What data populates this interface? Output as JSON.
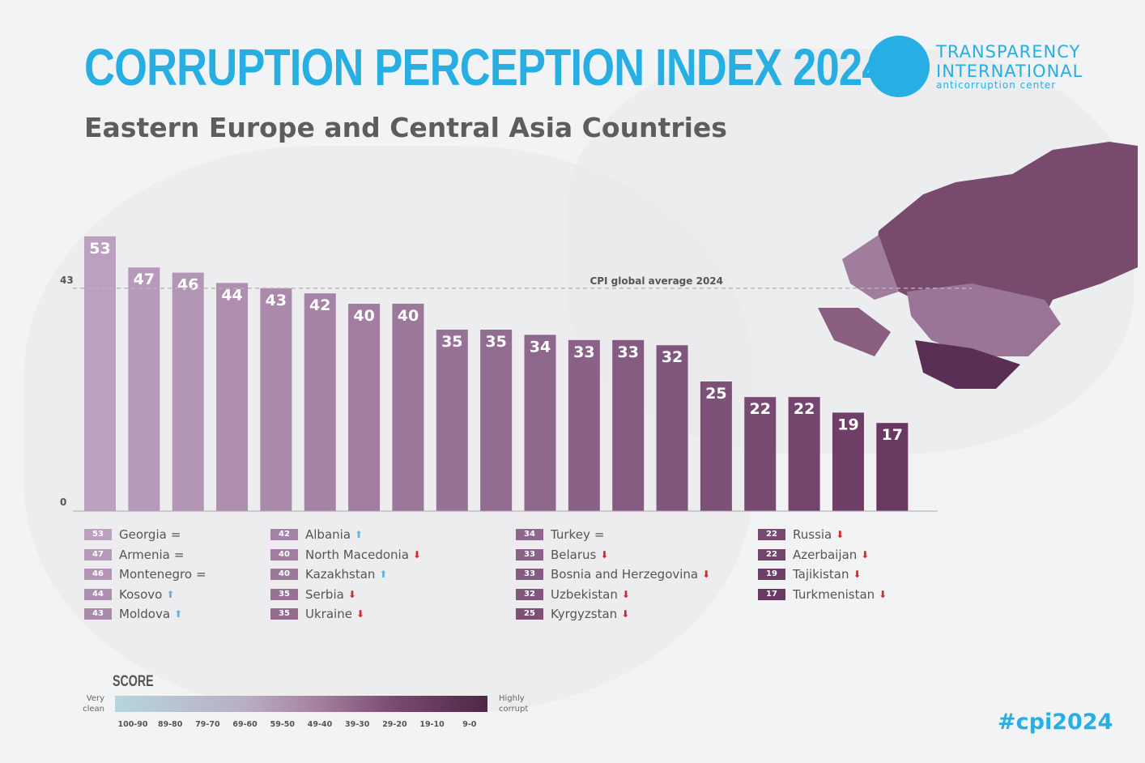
{
  "header": {
    "title": "CORRUPTION PERCEPTION INDEX 2024",
    "subtitle": "Eastern Europe and Central Asia Countries"
  },
  "logo": {
    "line1": "TRANSPARENCY",
    "line2": "INTERNATIONAL",
    "line3": "anticorruption center"
  },
  "chart_data": {
    "type": "bar",
    "categories": [
      "Georgia",
      "Armenia",
      "Montenegro",
      "Kosovo",
      "Moldova",
      "Albania",
      "North Macedonia",
      "Kazakhstan",
      "Serbia",
      "Ukraine",
      "Turkey",
      "Belarus",
      "Bosnia and Herzegovina",
      "Uzbekistan",
      "Kyrgyzstan",
      "Russia",
      "Azerbaijan",
      "Tajikistan",
      "Turkmenistan"
    ],
    "values": [
      53,
      47,
      46,
      44,
      43,
      42,
      40,
      40,
      35,
      35,
      34,
      33,
      33,
      32,
      25,
      22,
      22,
      19,
      17
    ],
    "trend": [
      "=",
      "=",
      "=",
      "up",
      "up",
      "up",
      "down",
      "up",
      "down",
      "down",
      "=",
      "down",
      "down",
      "down",
      "down",
      "down",
      "down",
      "down",
      "down"
    ],
    "ylim": [
      0,
      53
    ],
    "yticks": [
      "0",
      "43"
    ],
    "reference_line": {
      "value": 43,
      "label": "CPI global average 2024"
    },
    "colors": {
      "light": "#bca0c0",
      "dark": "#6a3962",
      "up": "#5bb8e0",
      "down": "#d7262d",
      "accent": "#27aee3"
    }
  },
  "scale": {
    "title": "SCORE",
    "left": "Very clean",
    "right": "Highly corrupt",
    "ranges": [
      "100-90",
      "89-80",
      "79-70",
      "69-60",
      "59-50",
      "49-40",
      "39-30",
      "29-20",
      "19-10",
      "9-0"
    ]
  },
  "hashtag": "#cpi2024"
}
